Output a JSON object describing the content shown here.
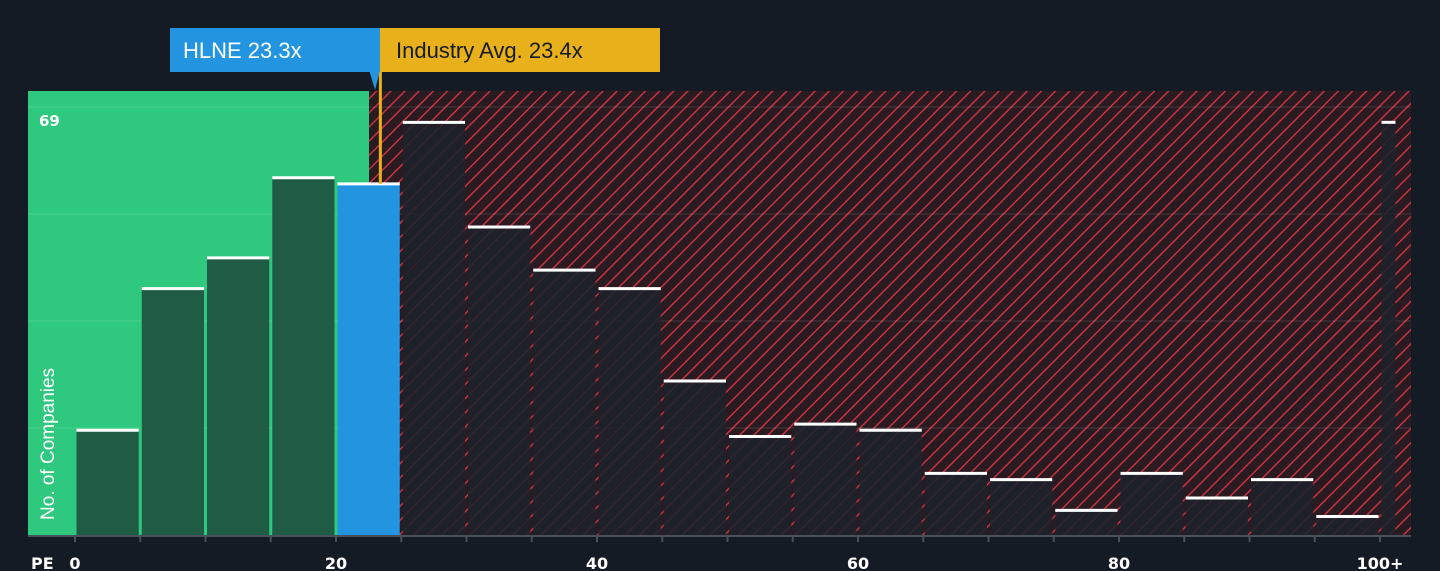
{
  "chart_data": {
    "type": "bar",
    "x_label": "PE",
    "y_label": "No. of Companies",
    "y_max_label": "69",
    "ylim": [
      0,
      69
    ],
    "x_ticks": [
      "0",
      "20",
      "40",
      "60",
      "80",
      "100+"
    ],
    "x_tick_values": [
      0,
      20,
      40,
      60,
      80,
      100
    ],
    "bins": [
      {
        "x0": 0,
        "x1": 5,
        "value": 17
      },
      {
        "x0": 5,
        "x1": 10,
        "value": 40
      },
      {
        "x0": 10,
        "x1": 15,
        "value": 45
      },
      {
        "x0": 15,
        "x1": 20,
        "value": 58
      },
      {
        "x0": 20,
        "x1": 25,
        "value": 57
      },
      {
        "x0": 25,
        "x1": 30,
        "value": 67
      },
      {
        "x0": 30,
        "x1": 35,
        "value": 50
      },
      {
        "x0": 35,
        "x1": 40,
        "value": 43
      },
      {
        "x0": 40,
        "x1": 45,
        "value": 40
      },
      {
        "x0": 45,
        "x1": 50,
        "value": 25
      },
      {
        "x0": 50,
        "x1": 55,
        "value": 16
      },
      {
        "x0": 55,
        "x1": 60,
        "value": 18
      },
      {
        "x0": 60,
        "x1": 65,
        "value": 17
      },
      {
        "x0": 65,
        "x1": 70,
        "value": 10
      },
      {
        "x0": 70,
        "x1": 75,
        "value": 9
      },
      {
        "x0": 75,
        "x1": 80,
        "value": 4
      },
      {
        "x0": 80,
        "x1": 85,
        "value": 10
      },
      {
        "x0": 85,
        "x1": 90,
        "value": 6
      },
      {
        "x0": 90,
        "x1": 95,
        "value": 9
      },
      {
        "x0": 95,
        "x1": 100,
        "value": 3
      },
      {
        "x0": 100,
        "x1": 101.3,
        "value": 67
      }
    ],
    "company": {
      "label": "HLNE 23.3x",
      "value": 23.3,
      "bin_index": 4
    },
    "industry": {
      "label": "Industry Avg. 23.4x",
      "value": 23.4
    },
    "grid": true,
    "colors": {
      "background": "#151b24",
      "below_avg_zone": "#2ec97e",
      "below_avg_bar": "#1f5b45",
      "above_avg_bar": "#1e222b",
      "hatch": "#c4343e",
      "company_bar": "#2394e0",
      "company_label": "#2394e0",
      "industry_label": "#e8b01a",
      "bar_cap": "#ffffff"
    }
  }
}
